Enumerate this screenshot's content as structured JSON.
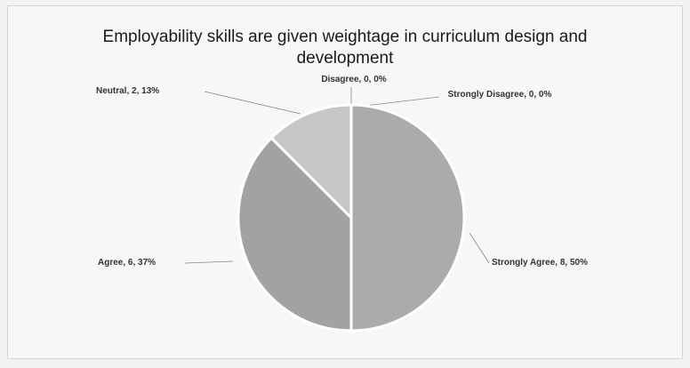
{
  "chart_data": {
    "type": "pie",
    "title": "Employability skills are given weightage in curriculum design and development",
    "values": [
      8,
      6,
      2,
      0,
      0
    ],
    "value_labels": [
      "Strongly Agree, 8, 50%",
      "Agree, 6, 37%",
      "Neutral, 2, 13%",
      "Disagree, 0, 0%",
      "Strongly Disagree, 0, 0%"
    ],
    "colors": [
      "#ababab",
      "#a2a2a2",
      "#c6c6c6",
      "#b5b5b5",
      "#bdbdbd"
    ]
  }
}
